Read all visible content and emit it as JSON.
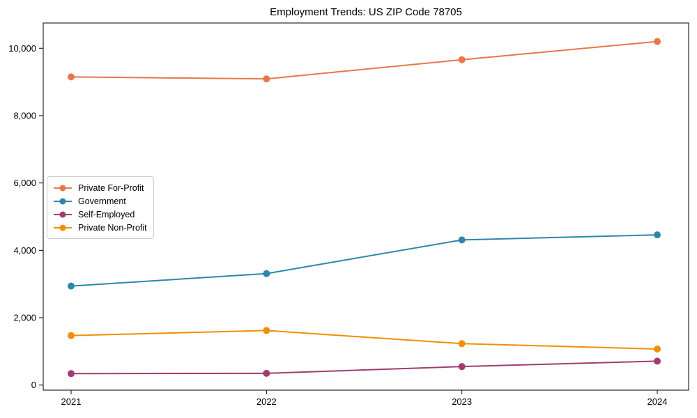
{
  "page": {
    "background": "#ffffff",
    "axis_color": "#000000",
    "legend_border_color": "#cccccc"
  },
  "chart_data": {
    "type": "line",
    "title": "Employment Trends: US ZIP Code 78705",
    "xlabel": "",
    "ylabel": "",
    "categories": [
      "2021",
      "2022",
      "2023",
      "2024"
    ],
    "series": [
      {
        "name": "Private For-Profit",
        "color": "#E8764B",
        "values": [
          9150,
          9090,
          9660,
          10200
        ]
      },
      {
        "name": "Government",
        "color": "#2E86AB",
        "values": [
          2940,
          3310,
          4310,
          4460
        ]
      },
      {
        "name": "Self-Employed",
        "color": "#A23B72",
        "values": [
          340,
          350,
          550,
          710
        ]
      },
      {
        "name": "Private Non-Profit",
        "color": "#F18F01",
        "values": [
          1470,
          1620,
          1230,
          1070
        ]
      }
    ],
    "yticks": [
      {
        "value": 0,
        "label": "0"
      },
      {
        "value": 2000,
        "label": "2,000"
      },
      {
        "value": 4000,
        "label": "4,000"
      },
      {
        "value": 6000,
        "label": "6,000"
      },
      {
        "value": 8000,
        "label": "8,000"
      },
      {
        "value": 10000,
        "label": "10,000"
      }
    ],
    "ylim": [
      -150,
      10750
    ],
    "grid": false,
    "legend_position": "center-left",
    "marker": "circle"
  }
}
